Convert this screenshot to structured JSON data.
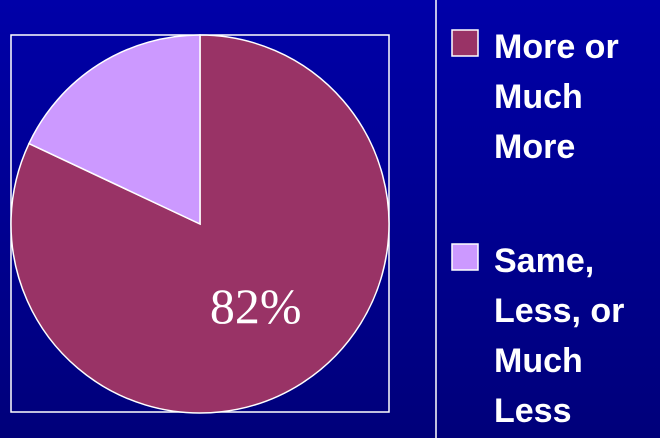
{
  "chart_data": {
    "type": "pie",
    "series": [
      {
        "name": "More or Much More",
        "color": "#993366"
      },
      {
        "name": "Same, Less, or Much Less",
        "color": "#cc99ff"
      }
    ],
    "values": [
      82,
      18
    ],
    "value_labels": [
      "82%",
      null
    ]
  }
}
